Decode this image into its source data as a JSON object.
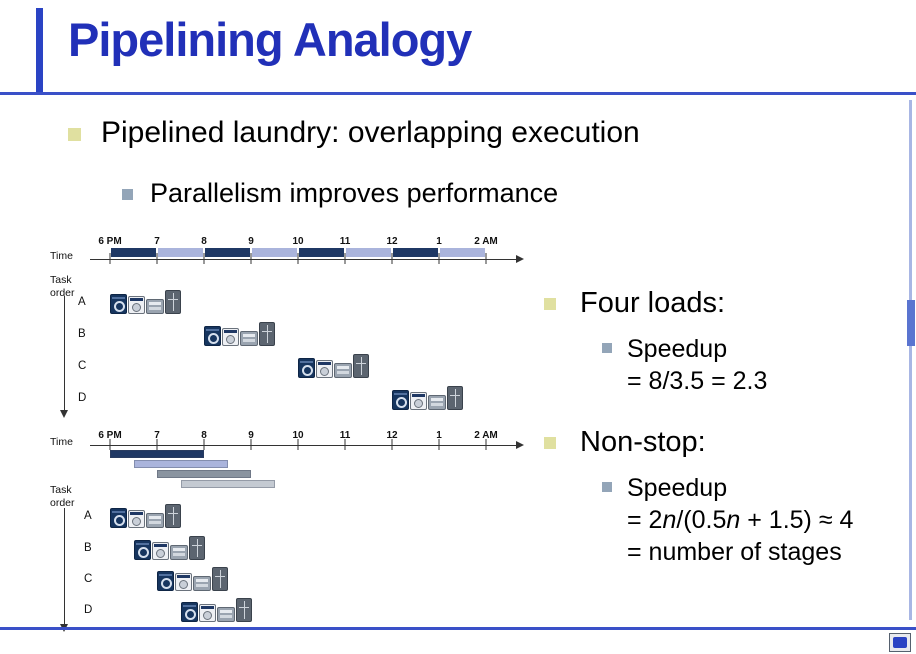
{
  "slide": {
    "title": "Pipelining Analogy",
    "bullet_main": "Pipelined laundry: overlapping execution",
    "bullet_sub": "Parallelism improves performance"
  },
  "right": {
    "four_loads": {
      "label": "Four loads:",
      "speedup": "Speedup",
      "value": "= 8/3.5 = 2.3"
    },
    "non_stop": {
      "label": "Non-stop:",
      "speedup": "Speedup",
      "formula_p1": "= 2",
      "formula_n1": "n",
      "formula_p2": "/(0.5",
      "formula_n2": "n",
      "formula_p3": " + 1.5) ≈ 4",
      "stages": "= number of stages"
    }
  },
  "diagrams": {
    "time_axis_label": "Time",
    "task_order_label": "Task\norder",
    "time_labels": [
      "6 PM",
      "7",
      "8",
      "9",
      "10",
      "11",
      "12",
      "1",
      "2 AM"
    ],
    "tasks": [
      "A",
      "B",
      "C",
      "D"
    ],
    "stage_icons": [
      "washer",
      "dryer",
      "folder",
      "storer"
    ],
    "sequential": {
      "start_hours": [
        0,
        2,
        4,
        6
      ]
    },
    "pipelined": {
      "start_hours": [
        0,
        0.5,
        1,
        1.5
      ],
      "stage_bars_hours": [
        [
          0,
          2
        ],
        [
          0.5,
          2.5
        ],
        [
          1,
          3
        ],
        [
          1.5,
          3.5
        ]
      ]
    }
  },
  "colors": {
    "title_blue": "#2130b8",
    "accent_line_blue": "#3a50c8",
    "bullet_yellow": "#e0e0a0",
    "bullet_gray_blue": "#93a5b8",
    "segment_dark_navy": "#1f3864",
    "segment_periwinkle": "#aab4dc",
    "bar_gray": "#8a94a0",
    "bar_light_gray": "#c4cad2"
  }
}
